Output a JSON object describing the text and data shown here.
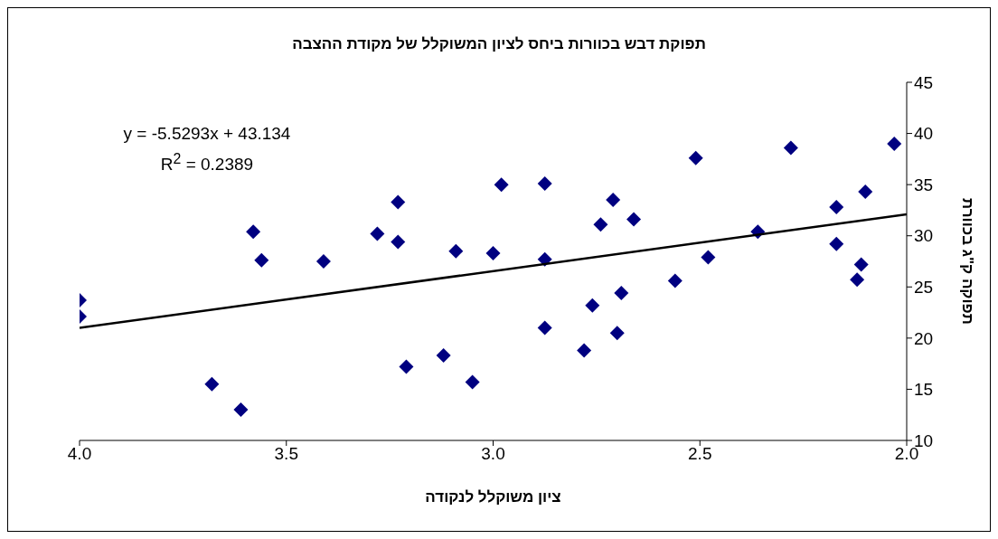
{
  "chart_data": {
    "type": "scatter",
    "title": "תפוקת דבש בכוורות ביחס לציון המשוקלל של מקודת ההצבה",
    "xlabel": "ציון משוקלל לנקודה",
    "ylabel": "תפוקה ק\"ג בכוורת",
    "x": [
      4.0,
      4.0,
      3.68,
      3.61,
      3.58,
      3.56,
      3.41,
      3.28,
      3.23,
      3.23,
      3.21,
      3.12,
      3.09,
      3.05,
      3.0,
      2.98,
      2.875,
      2.875,
      2.875,
      2.78,
      2.76,
      2.74,
      2.71,
      2.7,
      2.69,
      2.66,
      2.56,
      2.51,
      2.48,
      2.36,
      2.28,
      2.17,
      2.17,
      2.12,
      2.11,
      2.1,
      2.03
    ],
    "series": [
      {
        "color": "#000080",
        "marker": "diamond",
        "values": [
          23.7,
          22.1,
          15.5,
          13.0,
          30.4,
          27.6,
          27.5,
          30.2,
          33.3,
          29.4,
          17.2,
          18.3,
          28.5,
          15.7,
          28.3,
          35.0,
          35.1,
          27.7,
          21.0,
          18.8,
          23.2,
          31.1,
          33.5,
          20.5,
          24.4,
          31.6,
          25.6,
          37.6,
          27.9,
          30.4,
          38.6,
          32.8,
          29.2,
          25.7,
          27.2,
          34.3,
          39.0
        ]
      },
      {
        "type": "line",
        "color": "#000000",
        "marker": "none",
        "x": [
          4.0,
          2.0
        ],
        "values": [
          21.0,
          32.1
        ]
      }
    ],
    "xlim": [
      4.0,
      2.0
    ],
    "xticks": [
      {
        "value": 4.0,
        "label": "4.0"
      },
      {
        "value": 3.5,
        "label": "3.5"
      },
      {
        "value": 3.0,
        "label": "3.0"
      },
      {
        "value": 2.5,
        "label": "2.5"
      },
      {
        "value": 2.0,
        "label": "2.0"
      }
    ],
    "ylim": [
      10,
      45
    ],
    "yticks": [
      10,
      15,
      20,
      25,
      30,
      35,
      40,
      45
    ],
    "annotations": [
      "y = -5.5293x + 43.134",
      "R$^{2}$ = 0.2389"
    ]
  }
}
